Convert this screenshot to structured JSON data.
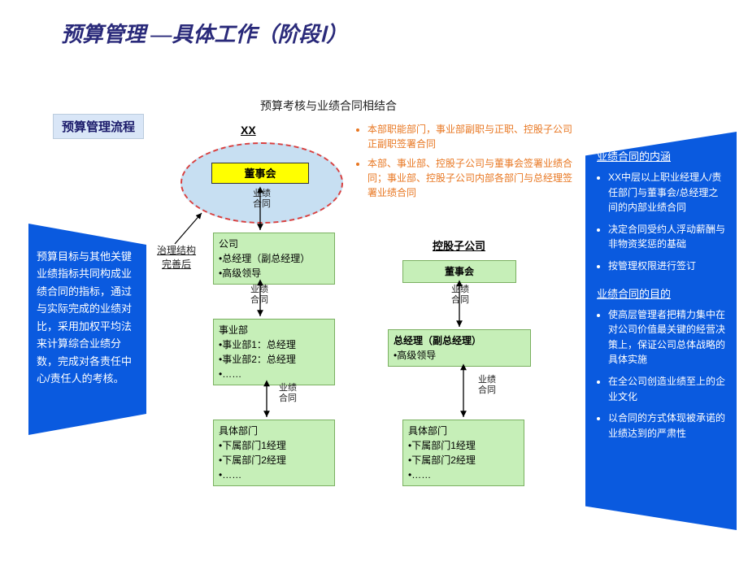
{
  "title": "预算管理 —具体工作（阶段Ⅰ）",
  "flow_label": "预算管理流程",
  "subtitle": "预算考核与业绩合同相结合",
  "xx_label": "XX",
  "left_panel": "预算目标与其他关键业绩指标共同构成业绩合同的指标，通过与实际完成的业绩对比，采用加权平均法来计算综合业绩分数，完成对各责任中心/责任人的考核。",
  "governance_label": "治理结构\n完善后",
  "perf_contract_label": "业绩\n合同",
  "ellipse": {
    "border_color": "#d84040",
    "fill": "#c7dff2"
  },
  "board_box": {
    "label": "董事会",
    "bg": "#ffff00"
  },
  "orange_bullets": [
    "本部职能部门，事业部副职与正职、控股子公司正副职签署合同",
    "本部、事业部、控股子公司与董事会签署业绩合同；事业部、控股子公司内部各部门与总经理签署业绩合同"
  ],
  "subsidiary_label": "控股子公司",
  "left_chain": {
    "company": {
      "header": "公司",
      "lines": [
        "•总经理（副总经理）",
        "•高级领导"
      ]
    },
    "division": {
      "header": "事业部",
      "lines": [
        "•事业部1：总经理",
        "•事业部2：总经理",
        "•……"
      ]
    },
    "dept": {
      "header": "具体部门",
      "lines": [
        "•下属部门1经理",
        "•下属部门2经理",
        "•……"
      ]
    }
  },
  "right_chain": {
    "board": {
      "header": "董事会",
      "lines": []
    },
    "gm": {
      "header": "总经理（副总经理）",
      "lines": [
        "•高级领导"
      ]
    },
    "dept": {
      "header": "具体部门",
      "lines": [
        "•下属部门1经理",
        "•下属部门2经理",
        "•……"
      ]
    }
  },
  "right_panel": {
    "title1": "业绩合同的内涵",
    "bullets1": [
      "XX中层以上职业经理人/责任部门与董事会/总经理之间的内部业绩合同",
      "决定合同受约人浮动薪酬与非物资奖惩的基础",
      "按管理权限进行签订"
    ],
    "title2": "业绩合同的目的",
    "bullets2": [
      "使高层管理者把精力集中在对公司价值最关键的经营决策上，保证公司总体战略的具体实施",
      "在全公司创造业绩至上的企业文化",
      "以合同的方式体现被承诺的业绩达到的严肃性"
    ]
  },
  "colors": {
    "blue_panel": "#0a5adf",
    "green_box": "#c6efb8",
    "orange_text": "#e87722"
  }
}
